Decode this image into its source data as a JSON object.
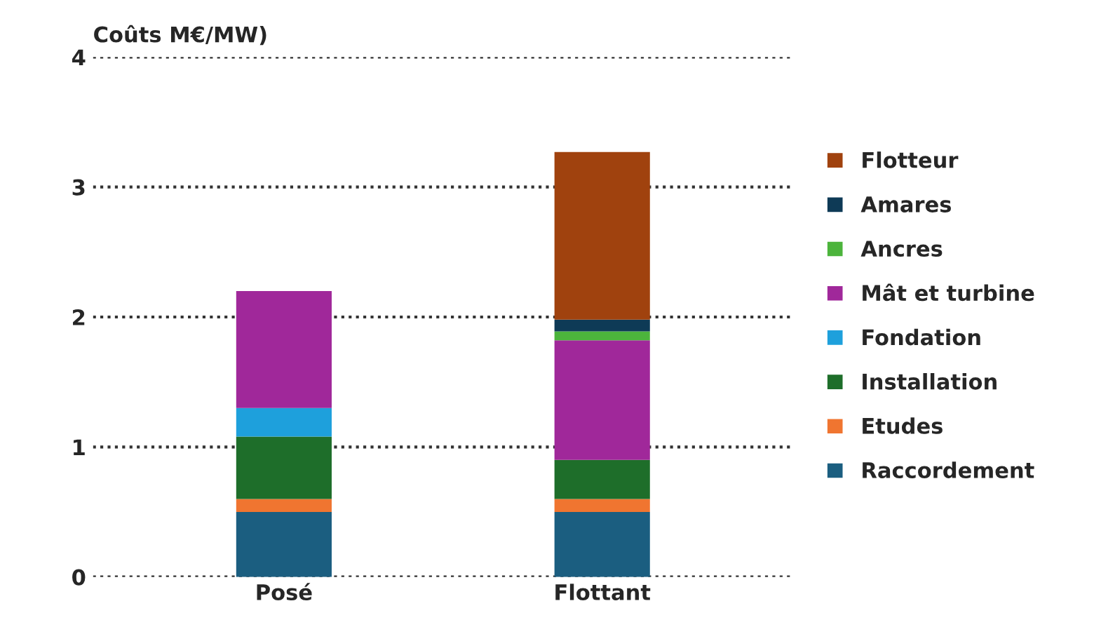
{
  "chart_data": {
    "type": "bar",
    "stacked": true,
    "ylabel": "Coûts M€/MW)",
    "categories": [
      "Posé",
      "Flottant"
    ],
    "series": [
      {
        "name": "Raccordement",
        "color": "#1b5e80",
        "values": [
          0.5,
          0.5
        ]
      },
      {
        "name": "Etudes",
        "color": "#f07530",
        "values": [
          0.1,
          0.1
        ]
      },
      {
        "name": "Installation",
        "color": "#1e6e2a",
        "values": [
          0.48,
          0.3
        ]
      },
      {
        "name": "Fondation",
        "color": "#1ea0dc",
        "values": [
          0.22,
          null
        ]
      },
      {
        "name": "Mât et turbine",
        "color": "#a0289a",
        "values": [
          0.9,
          0.92
        ]
      },
      {
        "name": "Ancres",
        "color": "#4cb43c",
        "values": [
          null,
          0.07
        ]
      },
      {
        "name": "Amares",
        "color": "#0e3a56",
        "values": [
          null,
          0.09
        ]
      },
      {
        "name": "Flotteur",
        "color": "#a0420e",
        "values": [
          null,
          1.29
        ]
      }
    ],
    "ylim": [
      0,
      4
    ],
    "yticks": [
      0,
      1,
      2,
      3,
      4
    ],
    "grid": "y",
    "legend": "right"
  }
}
